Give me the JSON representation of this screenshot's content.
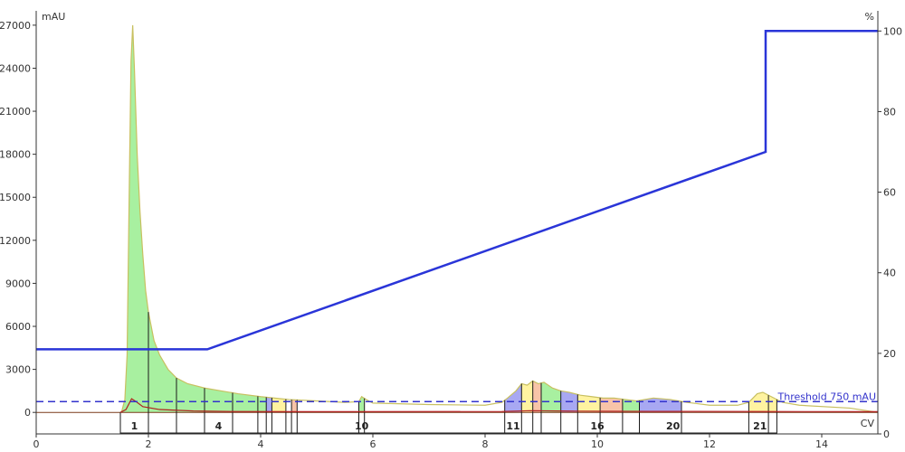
{
  "chart_data": {
    "type": "line",
    "x_axis": {
      "label": "CV",
      "range": [
        0,
        15
      ],
      "ticks": [
        0,
        2,
        4,
        6,
        8,
        10,
        12,
        14
      ]
    },
    "y_axis_left": {
      "label": "mAU",
      "range": [
        -1500,
        28000
      ],
      "ticks": [
        0,
        3000,
        6000,
        9000,
        12000,
        15000,
        18000,
        21000,
        24000,
        27000
      ]
    },
    "y_axis_right": {
      "label": "%",
      "range": [
        0,
        105
      ],
      "ticks": [
        0,
        20,
        40,
        60,
        80,
        100
      ]
    },
    "colors": {
      "absorbance_fill": "#aaf2a0",
      "absorbance_line": "#c8c060",
      "gradient": "#2a35d8",
      "secondary_trace": "#b02020",
      "threshold": "#3333cc",
      "fraction_green": "#a8f0a0",
      "fraction_yellow": "#fff3a0",
      "fraction_salmon": "#f8c4a8",
      "fraction_blue": "#a8a8f2"
    },
    "absorbance": {
      "name": "",
      "points": [
        [
          1.52,
          0
        ],
        [
          1.58,
          900
        ],
        [
          1.62,
          4000
        ],
        [
          1.66,
          16000
        ],
        [
          1.69,
          24500
        ],
        [
          1.72,
          27000
        ],
        [
          1.75,
          24000
        ],
        [
          1.8,
          18000
        ],
        [
          1.85,
          14000
        ],
        [
          1.9,
          11000
        ],
        [
          1.95,
          8500
        ],
        [
          2.0,
          7000
        ],
        [
          2.1,
          5000
        ],
        [
          2.2,
          4000
        ],
        [
          2.35,
          3000
        ],
        [
          2.5,
          2400
        ],
        [
          2.7,
          2000
        ],
        [
          3.0,
          1700
        ],
        [
          3.3,
          1500
        ],
        [
          3.6,
          1300
        ],
        [
          4.0,
          1100
        ],
        [
          4.5,
          900
        ],
        [
          5.0,
          800
        ],
        [
          5.5,
          700
        ],
        [
          5.75,
          750
        ],
        [
          5.8,
          1100
        ],
        [
          5.88,
          900
        ],
        [
          6.0,
          650
        ],
        [
          7.0,
          550
        ],
        [
          8.0,
          500
        ],
        [
          8.3,
          700
        ],
        [
          8.4,
          1000
        ],
        [
          8.55,
          1500
        ],
        [
          8.65,
          2000
        ],
        [
          8.75,
          1900
        ],
        [
          8.85,
          2200
        ],
        [
          8.95,
          2000
        ],
        [
          9.05,
          2100
        ],
        [
          9.2,
          1700
        ],
        [
          9.35,
          1500
        ],
        [
          9.5,
          1400
        ],
        [
          9.7,
          1200
        ],
        [
          9.9,
          1100
        ],
        [
          10.1,
          1000
        ],
        [
          10.3,
          1000
        ],
        [
          10.5,
          900
        ],
        [
          10.7,
          800
        ],
        [
          11.0,
          1000
        ],
        [
          11.3,
          900
        ],
        [
          11.6,
          700
        ],
        [
          12.0,
          500
        ],
        [
          12.5,
          500
        ],
        [
          12.7,
          700
        ],
        [
          12.85,
          1300
        ],
        [
          12.95,
          1400
        ],
        [
          13.1,
          1100
        ],
        [
          13.3,
          700
        ],
        [
          13.6,
          500
        ],
        [
          14.5,
          300
        ],
        [
          15.0,
          0
        ]
      ]
    },
    "secondary_trace": {
      "name": "",
      "points": [
        [
          1.5,
          0
        ],
        [
          1.6,
          200
        ],
        [
          1.7,
          950
        ],
        [
          1.78,
          750
        ],
        [
          1.9,
          400
        ],
        [
          2.2,
          200
        ],
        [
          2.8,
          100
        ],
        [
          3.5,
          60
        ],
        [
          5.0,
          50
        ],
        [
          8.3,
          60
        ],
        [
          8.8,
          120
        ],
        [
          9.5,
          90
        ],
        [
          11,
          70
        ],
        [
          13,
          60
        ],
        [
          15,
          50
        ]
      ]
    },
    "gradient": {
      "name": "",
      "points": [
        [
          0,
          21
        ],
        [
          3.05,
          21
        ],
        [
          13.0,
          70
        ],
        [
          13.0,
          100
        ],
        [
          15.0,
          100
        ]
      ]
    },
    "threshold": {
      "value": 750,
      "label": "Threshold 750 mAU"
    },
    "fractions": {
      "boundaries": [
        1.5,
        2.0,
        2.5,
        3.0,
        3.5,
        3.95,
        4.1,
        4.2,
        4.45,
        4.55,
        4.65,
        5.75,
        5.85,
        8.35,
        8.65,
        8.85,
        9.0,
        9.35,
        9.65,
        10.05,
        10.45,
        10.75,
        11.5,
        12.7,
        13.05,
        13.2
      ],
      "shading": [
        {
          "from": 1.5,
          "to": 4.1,
          "color": "green"
        },
        {
          "from": 4.1,
          "to": 4.2,
          "color": "blue"
        },
        {
          "from": 4.2,
          "to": 4.45,
          "color": "yellow"
        },
        {
          "from": 4.55,
          "to": 4.65,
          "color": "salmon"
        },
        {
          "from": 5.75,
          "to": 5.85,
          "color": "green"
        },
        {
          "from": 8.35,
          "to": 8.65,
          "color": "blue"
        },
        {
          "from": 8.65,
          "to": 8.85,
          "color": "yellow"
        },
        {
          "from": 8.85,
          "to": 9.0,
          "color": "salmon"
        },
        {
          "from": 9.0,
          "to": 9.35,
          "color": "green"
        },
        {
          "from": 9.35,
          "to": 9.65,
          "color": "blue"
        },
        {
          "from": 9.65,
          "to": 10.05,
          "color": "yellow"
        },
        {
          "from": 10.05,
          "to": 10.45,
          "color": "salmon"
        },
        {
          "from": 10.45,
          "to": 10.75,
          "color": "green"
        },
        {
          "from": 10.75,
          "to": 11.5,
          "color": "blue"
        },
        {
          "from": 12.7,
          "to": 13.05,
          "color": "yellow"
        },
        {
          "from": 13.05,
          "to": 13.2,
          "color": "yellow"
        }
      ],
      "labels": [
        {
          "x": 1.75,
          "text": "1"
        },
        {
          "x": 3.25,
          "text": "4"
        },
        {
          "x": 5.8,
          "text": "10"
        },
        {
          "x": 8.5,
          "text": "11"
        },
        {
          "x": 10.0,
          "text": "16"
        },
        {
          "x": 11.35,
          "text": "20"
        },
        {
          "x": 12.9,
          "text": "21"
        }
      ]
    }
  }
}
